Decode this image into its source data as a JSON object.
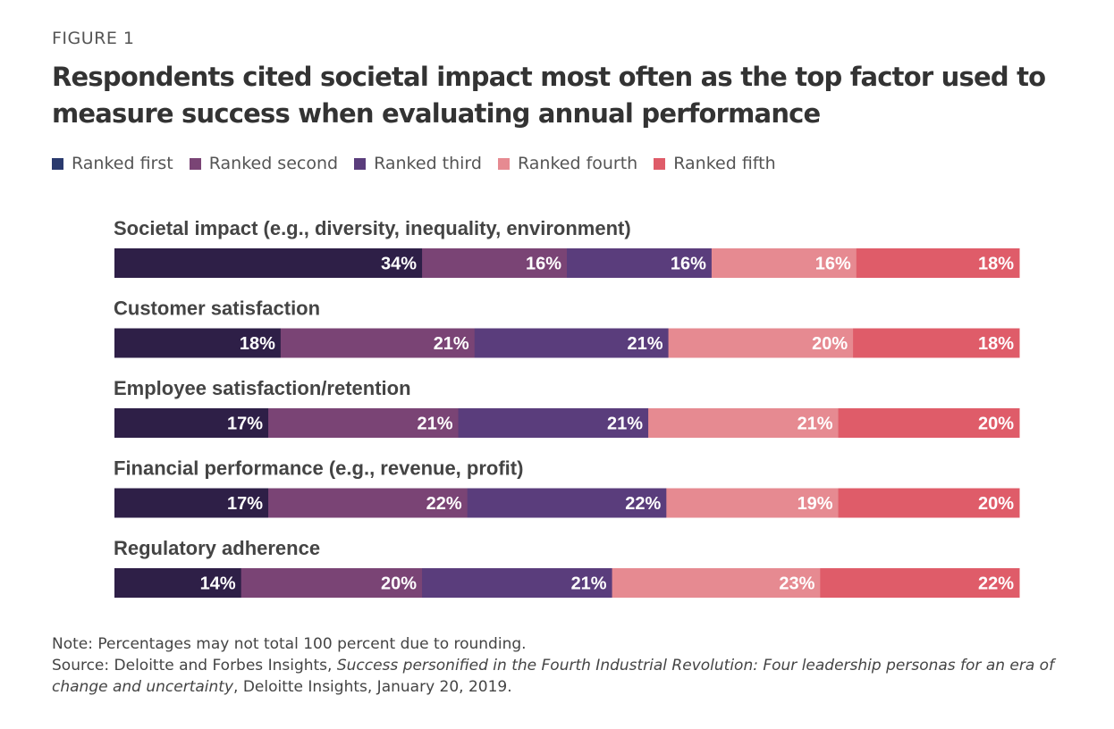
{
  "figure_label": "FIGURE 1",
  "title": "Respondents cited societal impact most often as the top factor used to measure success when evaluating annual performance",
  "note": "Note: Percentages may not total 100 percent due to rounding.",
  "source": {
    "prefix": "Source: Deloitte and Forbes Insights, ",
    "publication": "Success personified in the Fourth Industrial Revolution: Four leadership personas for an era of change and uncertainty",
    "suffix": ", Deloitte Insights, January 20, 2019."
  },
  "chart_data": {
    "type": "bar",
    "orientation": "horizontal",
    "stacked": true,
    "title": "Respondents cited societal impact most often as the top factor used to measure success when evaluating annual performance",
    "legend_position": "top-left",
    "grid": false,
    "categories": [
      "Societal impact (e.g., diversity, inequality, environment)",
      "Customer satisfaction",
      "Employee satisfaction/retention",
      "Financial performance (e.g., revenue, profit)",
      "Regulatory adherence"
    ],
    "series": [
      {
        "name": "Ranked first",
        "color": "#2e1f47",
        "values": [
          34,
          18,
          17,
          17,
          14
        ]
      },
      {
        "name": "Ranked second",
        "color": "#7a4475",
        "values": [
          16,
          21,
          21,
          22,
          20
        ]
      },
      {
        "name": "Ranked third",
        "color": "#5a3d7c",
        "values": [
          16,
          21,
          21,
          22,
          21
        ]
      },
      {
        "name": "Ranked fourth",
        "color": "#e68a91",
        "values": [
          16,
          20,
          21,
          19,
          23
        ]
      },
      {
        "name": "Ranked fifth",
        "color": "#df5c69",
        "values": [
          18,
          18,
          20,
          20,
          22
        ]
      }
    ],
    "value_suffix": "%"
  }
}
